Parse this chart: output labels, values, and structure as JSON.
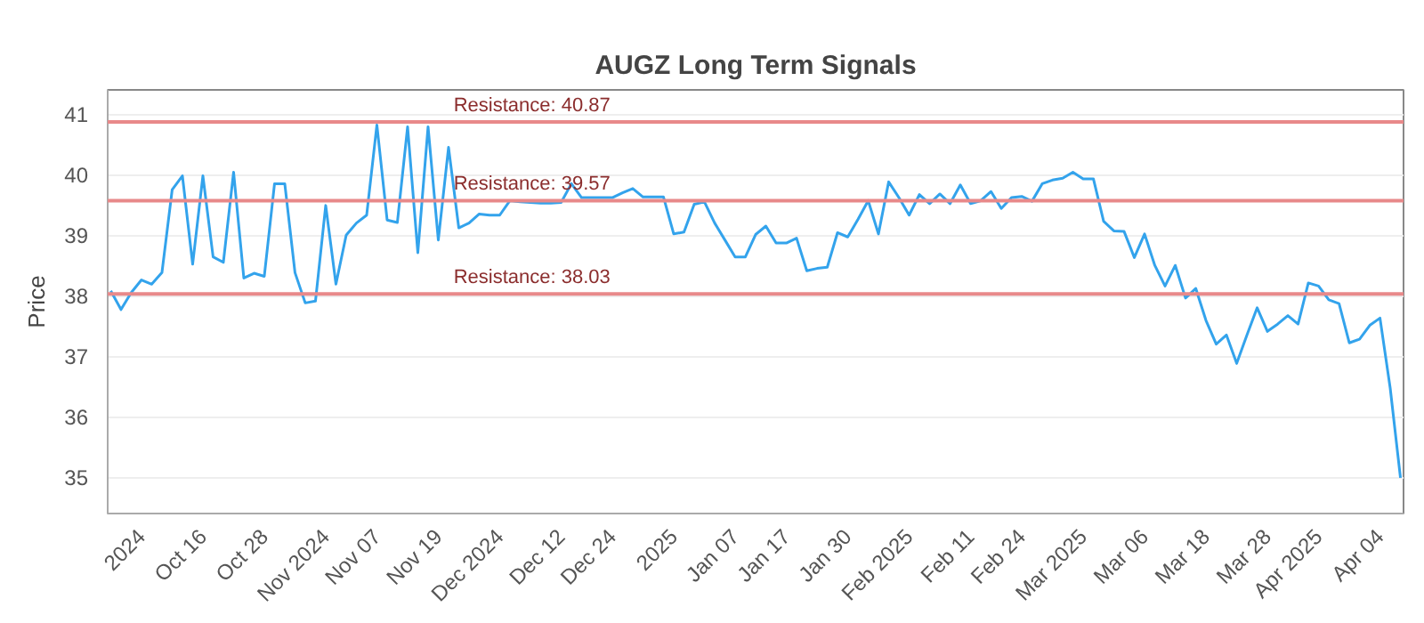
{
  "chart_data": {
    "type": "line",
    "title": "AUGZ Long Term Signals",
    "ylabel": "Price",
    "categories": [
      null,
      null,
      null,
      "2024",
      null,
      null,
      null,
      null,
      null,
      "Oct 16",
      null,
      null,
      null,
      null,
      null,
      "Oct 28",
      null,
      null,
      null,
      null,
      null,
      "Nov 2024",
      null,
      null,
      null,
      null,
      "Nov 07",
      null,
      null,
      null,
      null,
      null,
      "Nov 19",
      null,
      null,
      null,
      null,
      null,
      "Dec 2024",
      null,
      null,
      null,
      null,
      null,
      "Dec 12",
      null,
      null,
      null,
      null,
      "Dec 24",
      null,
      null,
      null,
      null,
      null,
      "2025",
      null,
      null,
      null,
      null,
      null,
      "Jan 07",
      null,
      null,
      null,
      null,
      "Jan 17",
      null,
      null,
      null,
      null,
      null,
      "Jan 30",
      null,
      null,
      null,
      null,
      null,
      "Feb 2025",
      null,
      null,
      null,
      null,
      null,
      "Feb 11",
      null,
      null,
      null,
      null,
      "Feb 24",
      null,
      null,
      null,
      null,
      null,
      "Mar 2025",
      null,
      null,
      null,
      null,
      null,
      "Mar 06",
      null,
      null,
      null,
      null,
      null,
      "Mar 18",
      null,
      null,
      null,
      null,
      null,
      "Mar 28",
      null,
      null,
      null,
      null,
      "Apr 2025",
      null,
      null,
      null,
      null,
      null,
      "Apr 04",
      null,
      null
    ],
    "series": [
      {
        "color": "#33a3ec",
        "values": [
          38.08,
          37.77,
          38.05,
          38.26,
          38.19,
          38.38,
          39.75,
          39.98,
          38.52,
          39.98,
          38.64,
          38.55,
          40.04,
          38.29,
          38.37,
          38.32,
          39.85,
          39.85,
          38.38,
          37.88,
          37.91,
          39.49,
          38.19,
          39.0,
          39.2,
          39.33,
          40.82,
          39.25,
          39.21,
          40.79,
          38.71,
          40.79,
          38.92,
          40.45,
          39.12,
          39.2,
          39.35,
          39.33,
          39.33,
          39.57,
          39.55,
          39.54,
          39.53,
          39.53,
          39.54,
          39.85,
          39.62,
          39.62,
          39.62,
          39.62,
          39.7,
          39.77,
          39.63,
          39.63,
          39.63,
          39.02,
          39.05,
          39.51,
          39.55,
          39.2,
          38.92,
          38.64,
          38.64,
          39.01,
          39.15,
          38.87,
          38.87,
          38.95,
          38.41,
          38.45,
          38.47,
          39.04,
          38.97,
          39.26,
          39.57,
          39.02,
          39.88,
          39.62,
          39.33,
          39.67,
          39.52,
          39.68,
          39.52,
          39.83,
          39.52,
          39.57,
          39.72,
          39.44,
          39.62,
          39.64,
          39.56,
          39.85,
          39.91,
          39.94,
          40.04,
          39.93,
          39.93,
          39.23,
          39.07,
          39.06,
          38.63,
          39.02,
          38.5,
          38.16,
          38.5,
          37.96,
          38.12,
          37.59,
          37.2,
          37.35,
          36.88,
          37.35,
          37.8,
          37.41,
          37.53,
          37.67,
          37.53,
          38.21,
          38.16,
          37.93,
          37.87,
          37.22,
          37.28,
          37.51,
          37.63,
          36.47,
          34.99
        ]
      }
    ],
    "ylim": [
      34.4,
      41.4
    ],
    "yticks": [
      35,
      36,
      37,
      38,
      39,
      40,
      41
    ],
    "grid": "y",
    "ref_lines": [
      {
        "axis": "y",
        "value": 40.87,
        "label": "Resistance: 40.87",
        "color": "#e8898a"
      },
      {
        "axis": "y",
        "value": 39.57,
        "label": "Resistance: 39.57",
        "color": "#e8898a"
      },
      {
        "axis": "y",
        "value": 38.03,
        "label": "Resistance: 38.03",
        "color": "#e8898a"
      }
    ]
  }
}
